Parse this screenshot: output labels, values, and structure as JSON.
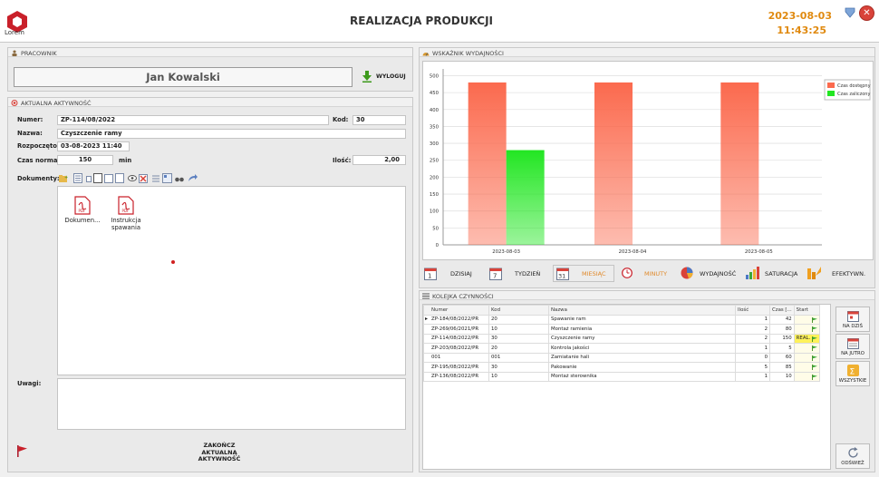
{
  "header": {
    "logo_text": "Lorem",
    "title": "REALIZACJA PRODUKCJI",
    "date": "2023-08-03",
    "time": "11:43:25"
  },
  "employee_panel": {
    "title": "PRACOWNIK",
    "name": "Jan Kowalski",
    "logout_label": "WYLOGUJ"
  },
  "activity_panel": {
    "title": "AKTUALNA AKTYWNOŚĆ",
    "number_label": "Numer:",
    "number_value": "ZP-114/08/2022",
    "code_label": "Kod:",
    "code_value": "30",
    "name_label": "Nazwa:",
    "name_value": "Czyszczenie ramy",
    "started_label": "Rozpoczęto:",
    "started_value": "03-08-2023 11:40",
    "norm_label": "Czas norma:",
    "norm_value": "150",
    "norm_unit": "min",
    "qty_label": "Ilość:",
    "qty_value": "2,00",
    "documents_label": "Dokumenty:",
    "documents": [
      {
        "name": "Dokumen...",
        "type": "PDF"
      },
      {
        "name": "Instrukcja spawania",
        "type": "PDF"
      }
    ],
    "notes_label": "Uwagi:",
    "notes_value": "",
    "finish_label": "ZAKOŃCZ AKTUALNĄ AKTYWNOŚĆ"
  },
  "performance_panel": {
    "title": "WSKAŹNIK WYDAJNOŚCI",
    "tabs": [
      {
        "label": "DZISIAJ",
        "icon": "calendar-day-icon",
        "active": false
      },
      {
        "label": "TYDZIEŃ",
        "icon": "calendar-week-icon",
        "active": false
      },
      {
        "label": "MIESIĄC",
        "icon": "calendar-month-icon",
        "active": true
      },
      {
        "label": "MINUTY",
        "icon": "clock-icon",
        "active": false
      },
      {
        "label": "WYDAJNOŚĆ",
        "icon": "pie-icon",
        "active": false
      },
      {
        "label": "SATURACJA",
        "icon": "bars-icon",
        "active": false
      },
      {
        "label": "EFEKTYWN.",
        "icon": "efficiency-icon",
        "active": false
      }
    ]
  },
  "chart_data": {
    "type": "bar",
    "categories": [
      "2023-08-03",
      "2023-08-04",
      "2023-08-05"
    ],
    "series": [
      {
        "name": "Czas dostępny",
        "color": "#fb6a4e",
        "values": [
          480,
          480,
          480
        ]
      },
      {
        "name": "Czas zaliczony",
        "color": "#22e622",
        "values": [
          280,
          0,
          0
        ]
      }
    ],
    "ylim": [
      0,
      520
    ],
    "yticks": [
      "0",
      "50",
      "100",
      "150",
      "200",
      "250",
      "300",
      "350",
      "400",
      "450",
      "500"
    ],
    "grid": true,
    "legend": "top-right"
  },
  "queue_panel": {
    "title": "KOLEJKA CZYNNOŚCI",
    "columns": [
      "Numer",
      "Kod",
      "Nazwa",
      "Ilość",
      "Czas [...",
      "Start"
    ],
    "rows": [
      {
        "number": "ZP-184/08/2022/PR",
        "code": "20",
        "name": "Spawanie ram",
        "qty": "1",
        "time": "42",
        "start": "",
        "current": true
      },
      {
        "number": "ZP-269/06/2021/PR",
        "code": "10",
        "name": "Montaż ramienia",
        "qty": "2",
        "time": "80",
        "start": ""
      },
      {
        "number": "ZP-114/08/2022/PR",
        "code": "30",
        "name": "Czyszczenie ramy",
        "qty": "2",
        "time": "150",
        "start": "REAL."
      },
      {
        "number": "ZP-203/08/2022/PR",
        "code": "20",
        "name": "Kontrola jakości",
        "qty": "1",
        "time": "5",
        "start": ""
      },
      {
        "number": "001",
        "code": "001",
        "name": "Zamiatanie hali",
        "qty": "0",
        "time": "60",
        "start": ""
      },
      {
        "number": "ZP-195/08/2022/PR",
        "code": "30",
        "name": "Pakowanie",
        "qty": "5",
        "time": "85",
        "start": ""
      },
      {
        "number": "ZP-136/08/2022/PR",
        "code": "10",
        "name": "Montaż sterownika",
        "qty": "1",
        "time": "10",
        "start": ""
      }
    ],
    "buttons": {
      "today": "NA DZIŚ",
      "tomorrow": "NA JUTRO",
      "all": "WSZYSTKIE",
      "refresh": "ODŚWIEŻ"
    }
  }
}
